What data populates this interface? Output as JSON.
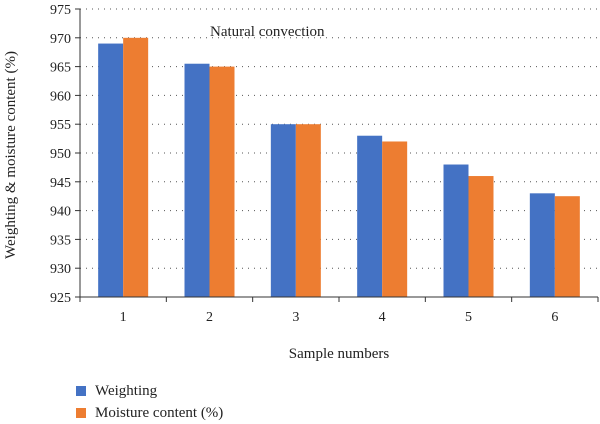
{
  "chart_data": {
    "type": "bar",
    "annotation": "Natural convection",
    "xlabel": "Sample numbers",
    "ylabel": "Weighting & moisture content (%)",
    "categories": [
      "1",
      "2",
      "3",
      "4",
      "5",
      "6"
    ],
    "ylim": [
      925,
      975
    ],
    "yticks": [
      925,
      930,
      935,
      940,
      945,
      950,
      955,
      960,
      965,
      970,
      975
    ],
    "grid": "horizontal dotted",
    "legend_position": "bottom-left",
    "series": [
      {
        "name": "Weighting",
        "color": "#4472C4",
        "values": [
          969,
          965.5,
          955,
          953,
          948,
          943
        ]
      },
      {
        "name": "Moisture content (%)",
        "color": "#ED7D31",
        "values": [
          970,
          965,
          955,
          952,
          946,
          942.5
        ]
      }
    ]
  }
}
